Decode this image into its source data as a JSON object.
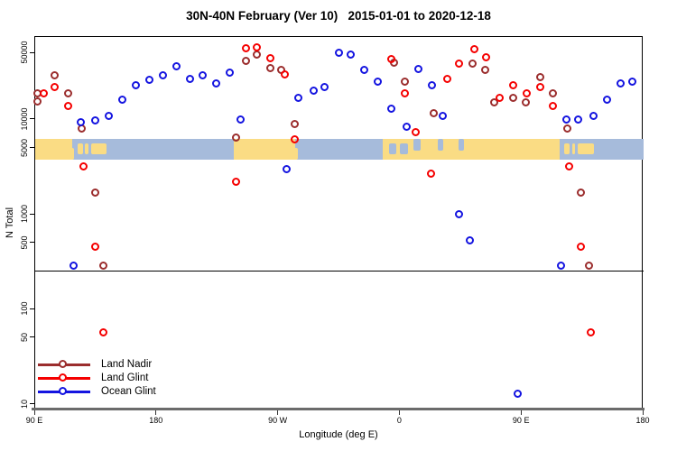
{
  "title": "30N-40N February (Ver 10)   2015-01-01 to 2020-12-18",
  "chart_data": {
    "type": "scatter",
    "title": "30N-40N February (Ver 10)   2015-01-01 to 2020-12-18",
    "xlabel": "Longitude (deg E)",
    "ylabel": "N Total",
    "x_axis": {
      "min": 90,
      "max": 540,
      "ticks": [
        {
          "value": 90,
          "label": "90 E"
        },
        {
          "value": 180,
          "label": "180"
        },
        {
          "value": 270,
          "label": "90 W"
        },
        {
          "value": 360,
          "label": "0"
        },
        {
          "value": 450,
          "label": "90 E"
        },
        {
          "value": 540,
          "label": "180"
        }
      ]
    },
    "y_axis": {
      "scale": "log",
      "min": 9,
      "max": 74000,
      "ticks": [
        {
          "value": 10,
          "label": "10"
        },
        {
          "value": 50,
          "label": "50"
        },
        {
          "value": 100,
          "label": "100"
        },
        {
          "value": 500,
          "label": "500"
        },
        {
          "value": 1000,
          "label": "1000"
        },
        {
          "value": 5000,
          "label": "5000"
        },
        {
          "value": 10000,
          "label": "10000"
        },
        {
          "value": 50000,
          "label": "50000"
        }
      ]
    },
    "reference_line": {
      "value": 260
    },
    "map_band": {
      "n_top": 6300,
      "n_bottom": 3800,
      "land_color": "#FADC84",
      "ocean_color": "#A6BBDB",
      "segments": [
        {
          "from": 90,
          "to": 117.5,
          "kind": "land",
          "part": "full"
        },
        {
          "from": 115.5,
          "to": 119,
          "kind": "land",
          "part": "bottom"
        },
        {
          "from": 121.5,
          "to": 125.5,
          "kind": "land",
          "part": "mid"
        },
        {
          "from": 127,
          "to": 129.5,
          "kind": "land",
          "part": "mid"
        },
        {
          "from": 131.5,
          "to": 143,
          "kind": "land",
          "part": "mid"
        },
        {
          "from": 237,
          "to": 282,
          "kind": "land",
          "part": "full"
        },
        {
          "from": 281,
          "to": 284,
          "kind": "land",
          "part": "bottom"
        },
        {
          "from": 347,
          "to": 478,
          "kind": "land",
          "part": "full"
        },
        {
          "from": 352,
          "to": 357,
          "kind": "ocean",
          "part": "mid"
        },
        {
          "from": 360,
          "to": 366,
          "kind": "ocean",
          "part": "mid"
        },
        {
          "from": 370,
          "to": 375,
          "kind": "ocean",
          "part": "top"
        },
        {
          "from": 388,
          "to": 392,
          "kind": "ocean",
          "part": "top"
        },
        {
          "from": 403,
          "to": 407,
          "kind": "ocean",
          "part": "top"
        },
        {
          "from": 481.5,
          "to": 485.5,
          "kind": "land",
          "part": "mid"
        },
        {
          "from": 487,
          "to": 489.5,
          "kind": "land",
          "part": "mid"
        },
        {
          "from": 491.5,
          "to": 503,
          "kind": "land",
          "part": "mid"
        }
      ]
    },
    "series": [
      {
        "name": "Land Nadir",
        "color": "#9B2D2D",
        "points": [
          [
            92,
            19000
          ],
          [
            92,
            15500
          ],
          [
            105,
            29000
          ],
          [
            115,
            19000
          ],
          [
            125,
            8000
          ],
          [
            135,
            1700
          ],
          [
            141,
            290
          ],
          [
            239,
            6400
          ],
          [
            246,
            41000
          ],
          [
            254,
            48000
          ],
          [
            264,
            35000
          ],
          [
            272,
            33000
          ],
          [
            282,
            8900
          ],
          [
            356,
            40000
          ],
          [
            364,
            25000
          ],
          [
            385,
            11600
          ],
          [
            414,
            39000
          ],
          [
            423,
            33000
          ],
          [
            430,
            15000
          ],
          [
            444,
            17000
          ],
          [
            453,
            15000
          ],
          [
            464,
            28000
          ],
          [
            473,
            19000
          ],
          [
            484,
            8100
          ],
          [
            494,
            1700
          ],
          [
            500,
            290
          ]
        ]
      },
      {
        "name": "Land Glint",
        "color": "#F50000",
        "points": [
          [
            97,
            19000
          ],
          [
            105,
            22000
          ],
          [
            115,
            14000
          ],
          [
            126,
            3200
          ],
          [
            135,
            460
          ],
          [
            141,
            57
          ],
          [
            239,
            2200
          ],
          [
            246,
            56000
          ],
          [
            254,
            57000
          ],
          [
            264,
            44000
          ],
          [
            275,
            30000
          ],
          [
            282,
            6100
          ],
          [
            354,
            43000
          ],
          [
            364,
            19000
          ],
          [
            372,
            7300
          ],
          [
            383,
            2700
          ],
          [
            395,
            27000
          ],
          [
            404,
            39000
          ],
          [
            415,
            55000
          ],
          [
            424,
            45000
          ],
          [
            434,
            17000
          ],
          [
            444,
            23000
          ],
          [
            454,
            19000
          ],
          [
            464,
            22000
          ],
          [
            473,
            14000
          ],
          [
            485,
            3200
          ],
          [
            494,
            460
          ],
          [
            501,
            57
          ]
        ]
      },
      {
        "name": "Ocean Glint",
        "color": "#1414E0",
        "points": [
          [
            119,
            290
          ],
          [
            124,
            9300
          ],
          [
            135,
            9700
          ],
          [
            145,
            11000
          ],
          [
            155,
            16000
          ],
          [
            165,
            23000
          ],
          [
            175,
            26000
          ],
          [
            185,
            29000
          ],
          [
            195,
            36000
          ],
          [
            205,
            27000
          ],
          [
            214,
            29000
          ],
          [
            224,
            24000
          ],
          [
            234,
            31000
          ],
          [
            242,
            10000
          ],
          [
            276,
            3000
          ],
          [
            285,
            17000
          ],
          [
            296,
            20000
          ],
          [
            304,
            22000
          ],
          [
            315,
            50000
          ],
          [
            324,
            48000
          ],
          [
            334,
            33000
          ],
          [
            344,
            25000
          ],
          [
            354,
            13000
          ],
          [
            365,
            8300
          ],
          [
            374,
            34000
          ],
          [
            384,
            23000
          ],
          [
            392,
            11000
          ],
          [
            404,
            1000
          ],
          [
            412,
            530
          ],
          [
            447,
            13
          ],
          [
            479,
            290
          ],
          [
            483,
            9900
          ],
          [
            492,
            9900
          ],
          [
            503,
            11000
          ],
          [
            513,
            16000
          ],
          [
            523,
            24000
          ],
          [
            532,
            25000
          ]
        ]
      }
    ],
    "legend_position": "bottom-left"
  }
}
